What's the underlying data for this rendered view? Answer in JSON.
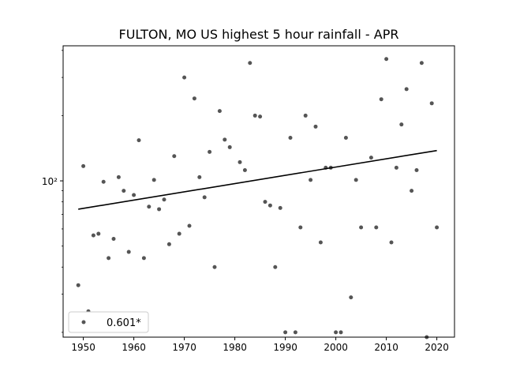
{
  "chart_data": {
    "type": "scatter",
    "title": "FULTON, MO US highest 5 hour rainfall - APR",
    "xlabel": "",
    "ylabel": "",
    "xlim": [
      1946,
      2023.5
    ],
    "ylim": [
      19,
      420
    ],
    "yscale": "log",
    "xticks": [
      1950,
      1960,
      1970,
      1980,
      1990,
      2000,
      2010,
      2020
    ],
    "xtick_labels": [
      "1950",
      "1960",
      "1970",
      "1980",
      "1990",
      "2000",
      "2010",
      "2020"
    ],
    "yticks": [
      100
    ],
    "ytick_labels": [
      "10²"
    ],
    "grid": false,
    "legend": {
      "placement": "lower-left",
      "label": "0.601*"
    },
    "point_color": "#555555",
    "line_color": "#000000",
    "points": {
      "x": [
        1949,
        1950,
        1951,
        1952,
        1953,
        1954,
        1955,
        1956,
        1957,
        1958,
        1959,
        1960,
        1961,
        1962,
        1963,
        1964,
        1965,
        1966,
        1967,
        1968,
        1969,
        1970,
        1971,
        1972,
        1973,
        1974,
        1975,
        1976,
        1977,
        1978,
        1979,
        1981,
        1982,
        1983,
        1984,
        1985,
        1986,
        1987,
        1988,
        1989,
        1990,
        1991,
        1992,
        1993,
        1994,
        1995,
        1996,
        1997,
        1998,
        1999,
        2000,
        2001,
        2002,
        2003,
        2004,
        2005,
        2007,
        2008,
        2009,
        2010,
        2011,
        2012,
        2013,
        2014,
        2015,
        2016,
        2017,
        2018,
        2019,
        2020
      ],
      "y": [
        33,
        117,
        25,
        56,
        57,
        99,
        44,
        54,
        104,
        90,
        47,
        86,
        154,
        44,
        76,
        101,
        74,
        82,
        51,
        130,
        57,
        300,
        62,
        240,
        104,
        84,
        136,
        40,
        210,
        155,
        143,
        122,
        112,
        350,
        200,
        198,
        80,
        77,
        40,
        75,
        20,
        158,
        20,
        61,
        200,
        101,
        178,
        52,
        115,
        115,
        20,
        20,
        158,
        29,
        101,
        61,
        128,
        61,
        238,
        365,
        52,
        115,
        182,
        265,
        90,
        112,
        350,
        19,
        228,
        61
      ]
    },
    "trend": {
      "x": [
        1949,
        2020
      ],
      "y": [
        74,
        138
      ]
    }
  }
}
